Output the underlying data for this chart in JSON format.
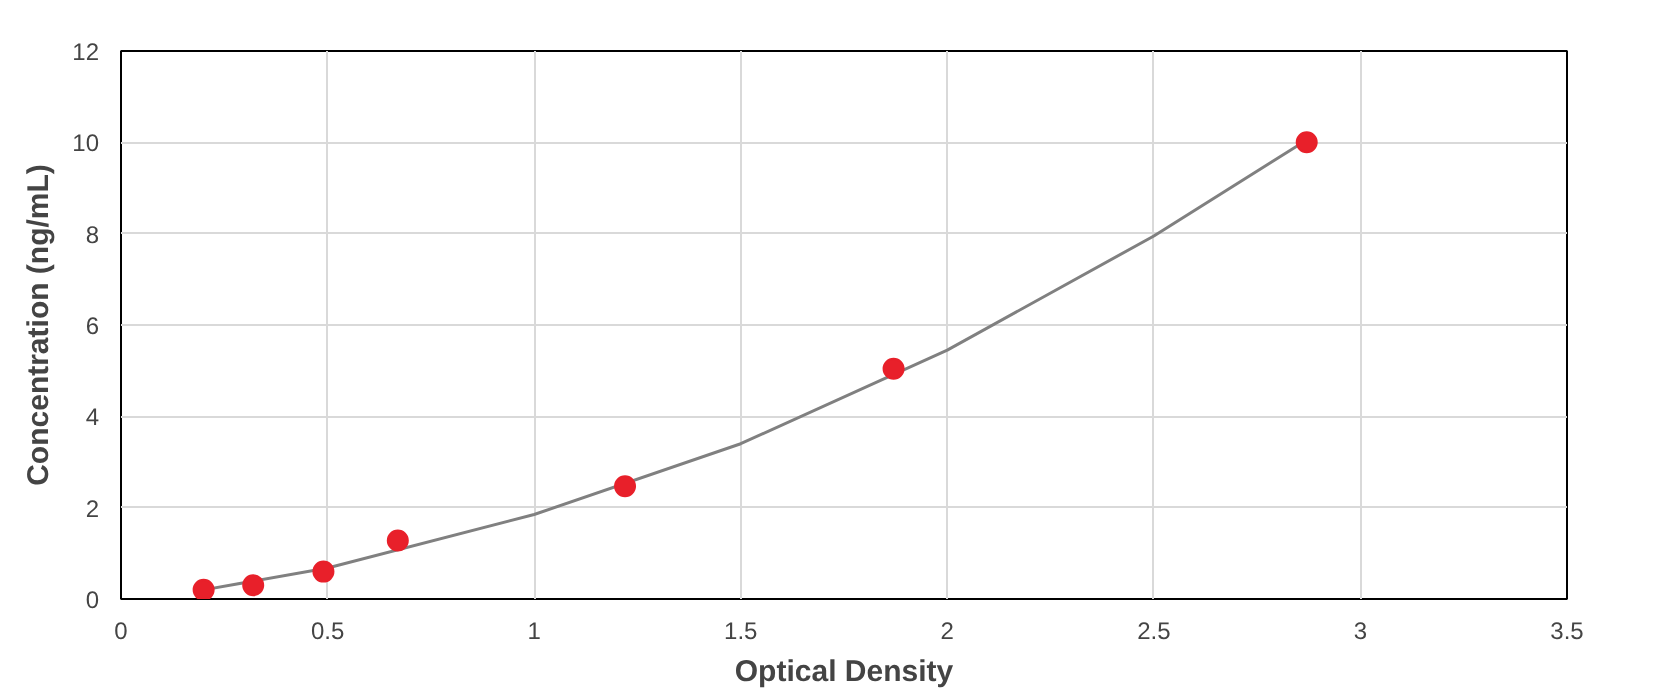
{
  "chart_data": {
    "type": "scatter",
    "xlabel": "Optical Density",
    "ylabel": "Concentration (ng/mL)",
    "xlim": [
      0,
      3.5
    ],
    "xticks": [
      0,
      0.5,
      1,
      1.5,
      2,
      2.5,
      3,
      3.5
    ],
    "ylim": [
      0,
      12
    ],
    "yticks": [
      0,
      2,
      4,
      6,
      8,
      10,
      12
    ],
    "grid": true,
    "series": [
      {
        "marker": "circle",
        "color": "#e8202a",
        "x": [
          0.2,
          0.32,
          0.49,
          0.67,
          1.22,
          1.87,
          2.87
        ],
        "values": [
          0.2,
          0.3,
          0.6,
          1.28,
          2.47,
          5.04,
          10.0
        ]
      },
      {
        "type": "line",
        "color": "#808080",
        "x": [
          0.2,
          0.5,
          1.0,
          1.5,
          2.0,
          2.5,
          2.87
        ],
        "values": [
          0.2,
          0.68,
          1.85,
          3.4,
          5.45,
          7.95,
          10.05
        ]
      }
    ]
  }
}
